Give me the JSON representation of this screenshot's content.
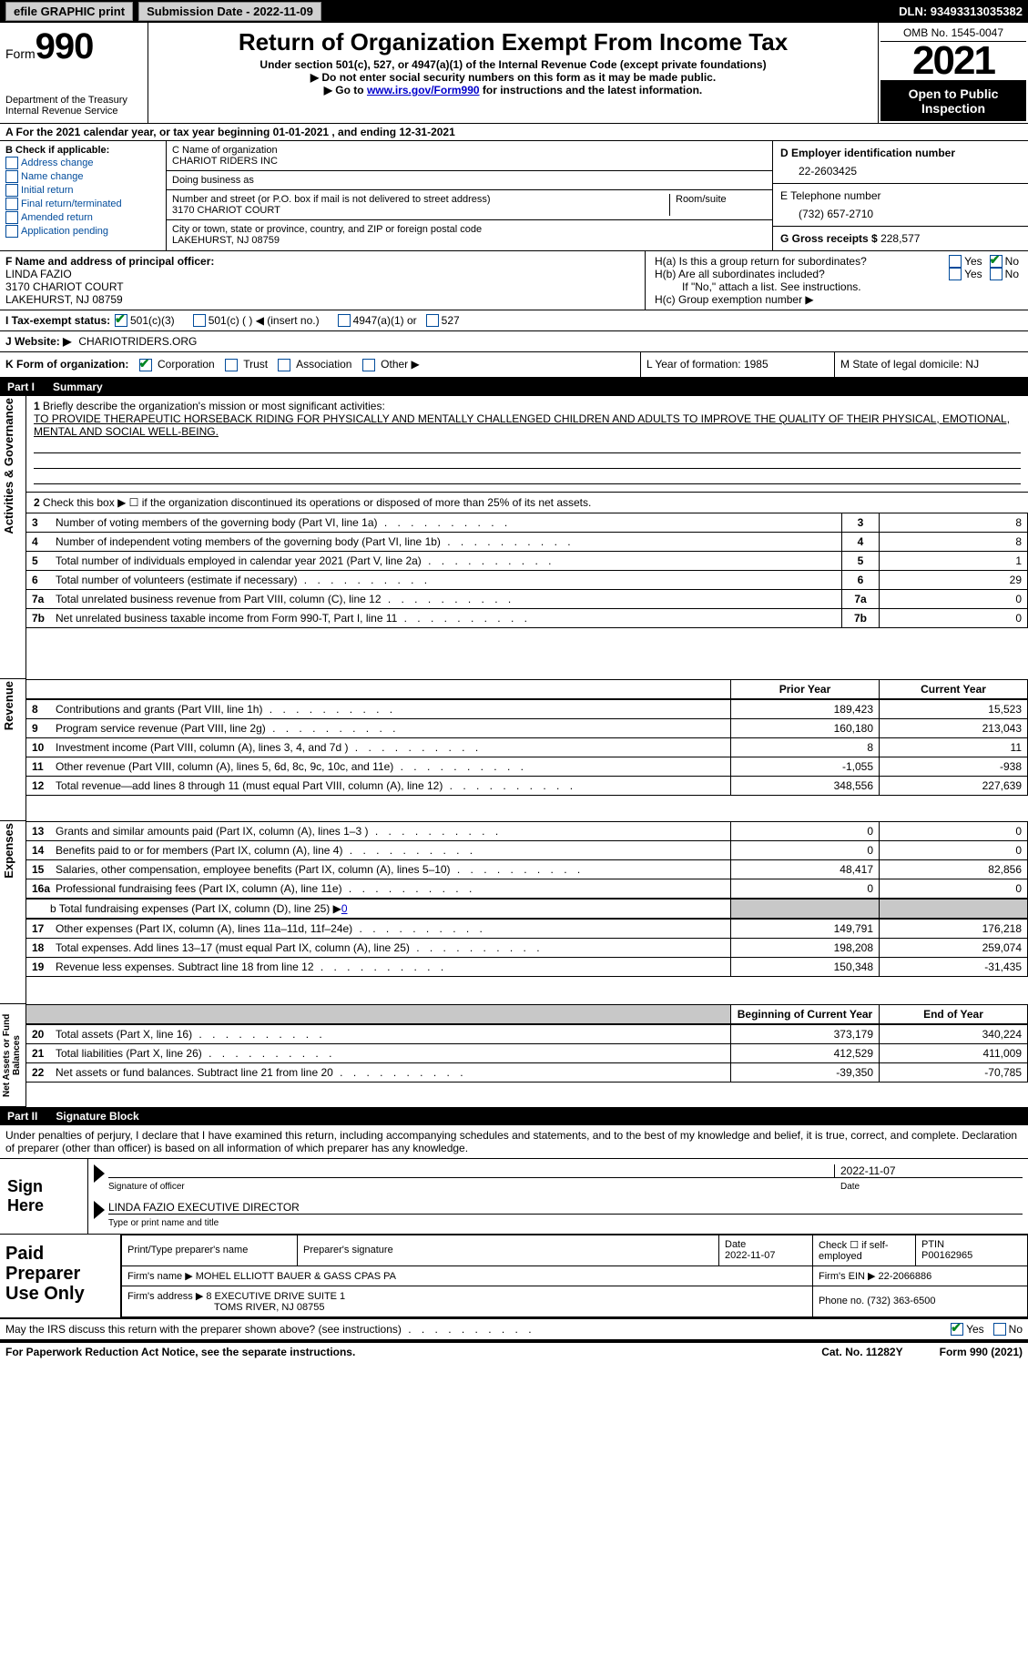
{
  "topbar": {
    "efile": "efile GRAPHIC print",
    "submission": "Submission Date - 2022-11-09",
    "dln": "DLN: 93493313035382"
  },
  "header": {
    "form_prefix": "Form",
    "form_number": "990",
    "dept": "Department of the Treasury\nInternal Revenue Service",
    "title": "Return of Organization Exempt From Income Tax",
    "subtitle": "Under section 501(c), 527, or 4947(a)(1) of the Internal Revenue Code (except private foundations)",
    "note1": "▶ Do not enter social security numbers on this form as it may be made public.",
    "note2_pre": "▶ Go to ",
    "note2_link": "www.irs.gov/Form990",
    "note2_post": " for instructions and the latest information.",
    "omb": "OMB No. 1545-0047",
    "year": "2021",
    "open": "Open to Public Inspection"
  },
  "section_a": "A For the 2021 calendar year, or tax year beginning 01-01-2021   , and ending 12-31-2021",
  "box_b": {
    "title": "B Check if applicable:",
    "opts": [
      "Address change",
      "Name change",
      "Initial return",
      "Final return/terminated",
      "Amended return",
      "Application pending"
    ]
  },
  "box_c": {
    "label": "C Name of organization",
    "org": "CHARIOT RIDERS INC",
    "dba_label": "Doing business as",
    "addr_label": "Number and street (or P.O. box if mail is not delivered to street address)",
    "room_label": "Room/suite",
    "addr": "3170 CHARIOT COURT",
    "city_label": "City or town, state or province, country, and ZIP or foreign postal code",
    "city": "LAKEHURST, NJ  08759"
  },
  "box_d": {
    "label": "D Employer identification number",
    "val": "22-2603425"
  },
  "box_e": {
    "label": "E Telephone number",
    "val": "(732) 657-2710"
  },
  "box_g": {
    "label": "G Gross receipts $",
    "val": "228,577"
  },
  "box_f": {
    "label": "F Name and address of principal officer:",
    "name": "LINDA FAZIO",
    "addr1": "3170 CHARIOT COURT",
    "addr2": "LAKEHURST, NJ  08759"
  },
  "box_h": {
    "ha": "H(a)  Is this a group return for subordinates?",
    "hb": "H(b)  Are all subordinates included?",
    "hb_note": "If \"No,\" attach a list. See instructions.",
    "hc": "H(c)  Group exemption number ▶",
    "yes": "Yes",
    "no": "No"
  },
  "box_i": {
    "label": "I  Tax-exempt status:",
    "o1": "501(c)(3)",
    "o2": "501(c) (  ) ◀ (insert no.)",
    "o3": "4947(a)(1) or",
    "o4": "527"
  },
  "box_j": {
    "label": "J  Website: ▶",
    "val": "CHARIOTRIDERS.ORG"
  },
  "box_k": {
    "label": "K Form of organization:",
    "o1": "Corporation",
    "o2": "Trust",
    "o3": "Association",
    "o4": "Other ▶"
  },
  "box_l": "L Year of formation: 1985",
  "box_m": "M State of legal domicile: NJ",
  "parts": {
    "p1": "Part I",
    "p1_title": "Summary",
    "p2": "Part II",
    "p2_title": "Signature Block"
  },
  "summary": {
    "sides": [
      "Activities & Governance",
      "Revenue",
      "Expenses",
      "Net Assets or Fund Balances"
    ],
    "l1_label": "Briefly describe the organization's mission or most significant activities:",
    "l1_text": "TO PROVIDE THERAPEUTIC HORSEBACK RIDING FOR PHYSICALLY AND MENTALLY CHALLENGED CHILDREN AND ADULTS TO IMPROVE THE QUALITY OF THEIR PHYSICAL, EMOTIONAL, MENTAL AND SOCIAL WELL-BEING.",
    "l2": "Check this box ▶ ☐ if the organization discontinued its operations or disposed of more than 25% of its net assets.",
    "rows_top": [
      {
        "n": "3",
        "d": "Number of voting members of the governing body (Part VI, line 1a)",
        "v": "8"
      },
      {
        "n": "4",
        "d": "Number of independent voting members of the governing body (Part VI, line 1b)",
        "v": "8"
      },
      {
        "n": "5",
        "d": "Total number of individuals employed in calendar year 2021 (Part V, line 2a)",
        "v": "1"
      },
      {
        "n": "6",
        "d": "Total number of volunteers (estimate if necessary)",
        "v": "29"
      },
      {
        "n": "7a",
        "d": "Total unrelated business revenue from Part VIII, column (C), line 12",
        "v": "0"
      },
      {
        "n": "7b",
        "d": "Net unrelated business taxable income from Form 990-T, Part I, line 11",
        "v": "0"
      }
    ],
    "col_prior": "Prior Year",
    "col_current": "Current Year",
    "rows_rev": [
      {
        "n": "8",
        "d": "Contributions and grants (Part VIII, line 1h)",
        "p": "189,423",
        "c": "15,523"
      },
      {
        "n": "9",
        "d": "Program service revenue (Part VIII, line 2g)",
        "p": "160,180",
        "c": "213,043"
      },
      {
        "n": "10",
        "d": "Investment income (Part VIII, column (A), lines 3, 4, and 7d )",
        "p": "8",
        "c": "11"
      },
      {
        "n": "11",
        "d": "Other revenue (Part VIII, column (A), lines 5, 6d, 8c, 9c, 10c, and 11e)",
        "p": "-1,055",
        "c": "-938"
      },
      {
        "n": "12",
        "d": "Total revenue—add lines 8 through 11 (must equal Part VIII, column (A), line 12)",
        "p": "348,556",
        "c": "227,639"
      }
    ],
    "rows_exp": [
      {
        "n": "13",
        "d": "Grants and similar amounts paid (Part IX, column (A), lines 1–3 )",
        "p": "0",
        "c": "0"
      },
      {
        "n": "14",
        "d": "Benefits paid to or for members (Part IX, column (A), line 4)",
        "p": "0",
        "c": "0"
      },
      {
        "n": "15",
        "d": "Salaries, other compensation, employee benefits (Part IX, column (A), lines 5–10)",
        "p": "48,417",
        "c": "82,856"
      },
      {
        "n": "16a",
        "d": "Professional fundraising fees (Part IX, column (A), line 11e)",
        "p": "0",
        "c": "0"
      }
    ],
    "l16b": "b  Total fundraising expenses (Part IX, column (D), line 25) ▶",
    "l16b_val": "0",
    "rows_exp2": [
      {
        "n": "17",
        "d": "Other expenses (Part IX, column (A), lines 11a–11d, 11f–24e)",
        "p": "149,791",
        "c": "176,218"
      },
      {
        "n": "18",
        "d": "Total expenses. Add lines 13–17 (must equal Part IX, column (A), line 25)",
        "p": "198,208",
        "c": "259,074"
      },
      {
        "n": "19",
        "d": "Revenue less expenses. Subtract line 18 from line 12",
        "p": "150,348",
        "c": "-31,435"
      }
    ],
    "col_begin": "Beginning of Current Year",
    "col_end": "End of Year",
    "rows_net": [
      {
        "n": "20",
        "d": "Total assets (Part X, line 16)",
        "p": "373,179",
        "c": "340,224"
      },
      {
        "n": "21",
        "d": "Total liabilities (Part X, line 26)",
        "p": "412,529",
        "c": "411,009"
      },
      {
        "n": "22",
        "d": "Net assets or fund balances. Subtract line 21 from line 20",
        "p": "-39,350",
        "c": "-70,785"
      }
    ]
  },
  "sig": {
    "penalty": "Under penalties of perjury, I declare that I have examined this return, including accompanying schedules and statements, and to the best of my knowledge and belief, it is true, correct, and complete. Declaration of preparer (other than officer) is based on all information of which preparer has any knowledge.",
    "sign_here": "Sign Here",
    "sig_officer": "Signature of officer",
    "date": "Date",
    "date_val": "2022-11-07",
    "name_title": "LINDA FAZIO  EXECUTIVE DIRECTOR",
    "name_label": "Type or print name and title"
  },
  "paid": {
    "label": "Paid Preparer Use Only",
    "print_name": "Print/Type preparer's name",
    "sig": "Preparer's signature",
    "date": "Date",
    "date_val": "2022-11-07",
    "check": "Check ☐ if self-employed",
    "ptin": "PTIN",
    "ptin_val": "P00162965",
    "firm_name_label": "Firm's name    ▶",
    "firm_name": "MOHEL ELLIOTT BAUER & GASS CPAS PA",
    "firm_ein": "Firm's EIN ▶ 22-2066886",
    "firm_addr_label": "Firm's address ▶",
    "firm_addr": "8 EXECUTIVE DRIVE SUITE 1",
    "firm_city": "TOMS RIVER, NJ  08755",
    "phone": "Phone no. (732) 363-6500"
  },
  "discuss": {
    "q": "May the IRS discuss this return with the preparer shown above? (see instructions)",
    "yes": "Yes",
    "no": "No"
  },
  "footer": {
    "left": "For Paperwork Reduction Act Notice, see the separate instructions.",
    "mid": "Cat. No. 11282Y",
    "right": "Form 990 (2021)"
  }
}
